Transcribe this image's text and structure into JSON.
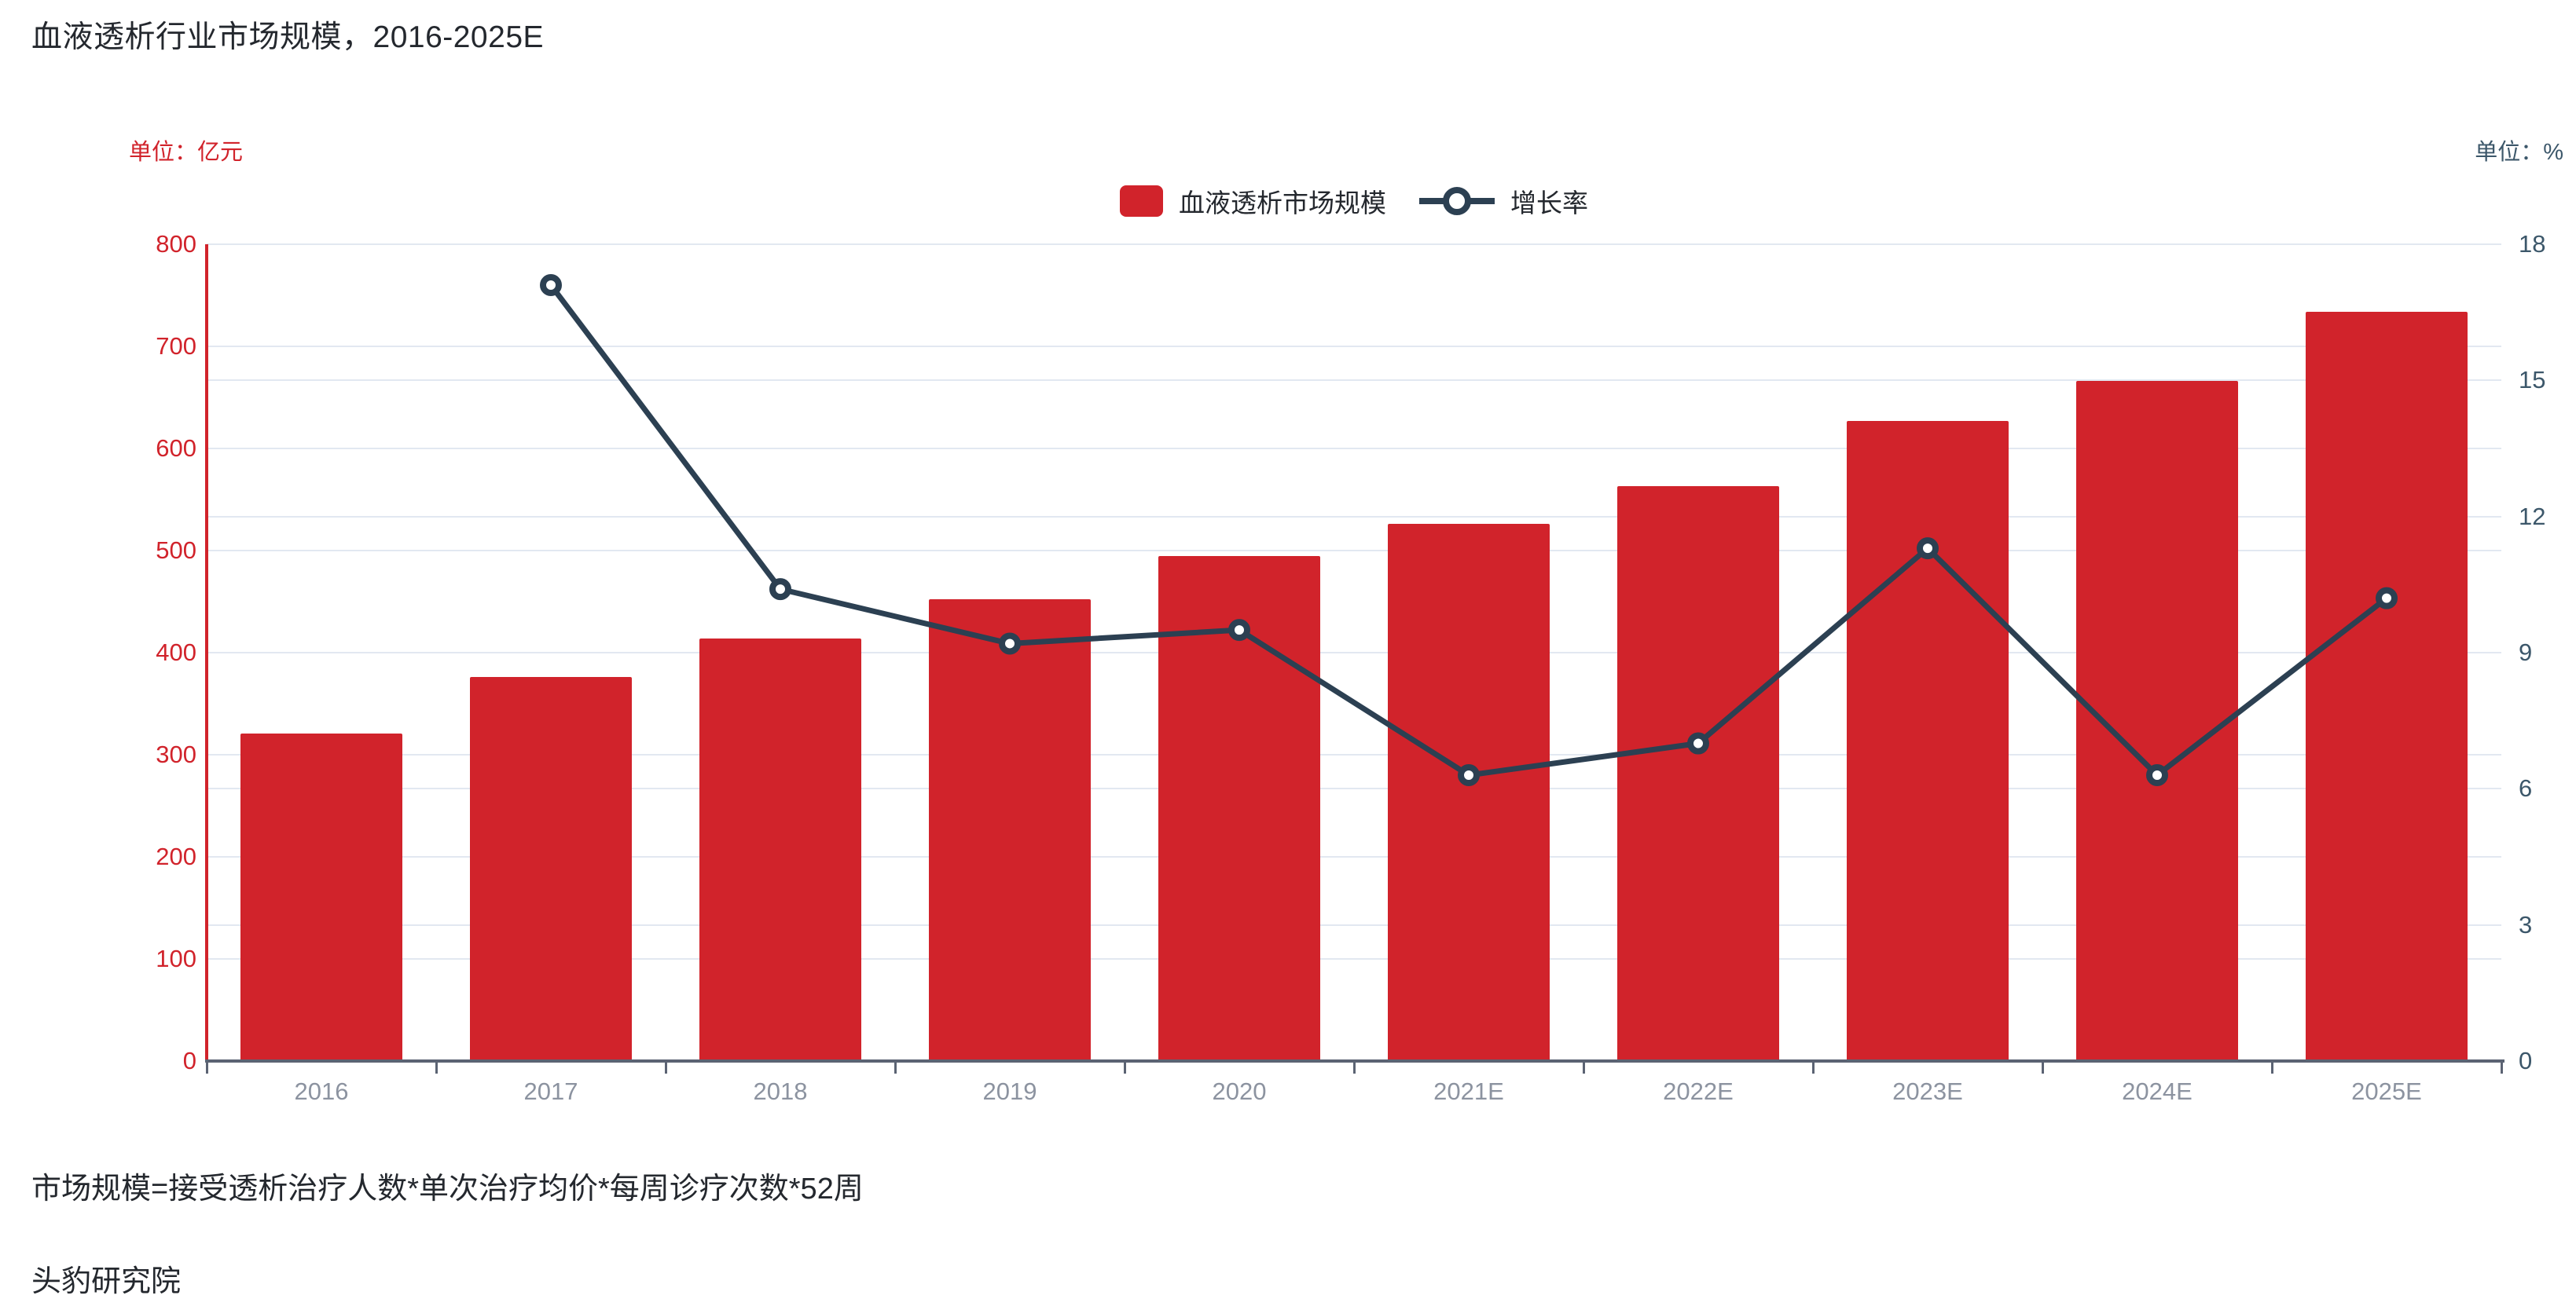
{
  "title": "血液透析行业市场规模，2016-2025E",
  "unit_left": "单位：亿元",
  "unit_right": "单位：%",
  "legend": [
    {
      "label": "血液透析市场规模",
      "type": "bar"
    },
    {
      "label": "增长率",
      "type": "line"
    }
  ],
  "footnote": "市场规模=接受透析治疗人数*单次治疗均价*每周诊疗次数*52周",
  "source": "头豹研究院",
  "colors": {
    "bar": "#d1232b",
    "line": "#2c4052",
    "left_axis": "#d1232b",
    "right_label": "#3c576a",
    "x_label": "#8c93a0",
    "x_axis": "#5b6373",
    "grid": "#e2e8f1",
    "text": "#24282e"
  },
  "chart_data": {
    "type": "bar",
    "subtype": "bar+line dual axis",
    "title": "血液透析行业市场规模，2016-2025E",
    "categories": [
      "2016",
      "2017",
      "2018",
      "2019",
      "2020",
      "2021E",
      "2022E",
      "2023E",
      "2024E",
      "2025E"
    ],
    "series": [
      {
        "name": "血液透析市场规模",
        "type": "bar",
        "axis": "left",
        "unit": "亿元",
        "values": [
          321,
          376,
          414,
          452,
          495,
          526,
          563,
          627,
          666,
          734
        ]
      },
      {
        "name": "增长率",
        "type": "line",
        "axis": "right",
        "unit": "%",
        "values": [
          null,
          17.1,
          10.4,
          9.2,
          9.5,
          6.3,
          7.0,
          11.3,
          6.3,
          10.2
        ]
      }
    ],
    "left_axis": {
      "min": 0,
      "max": 800,
      "step": 100,
      "ticks": [
        "0",
        "100",
        "200",
        "300",
        "400",
        "500",
        "600",
        "700",
        "800"
      ]
    },
    "right_axis": {
      "min": 0,
      "max": 18,
      "step": 3,
      "ticks": [
        "0",
        "3",
        "6",
        "9",
        "12",
        "15",
        "18"
      ]
    },
    "grid": true,
    "legend_position": "top-center"
  }
}
